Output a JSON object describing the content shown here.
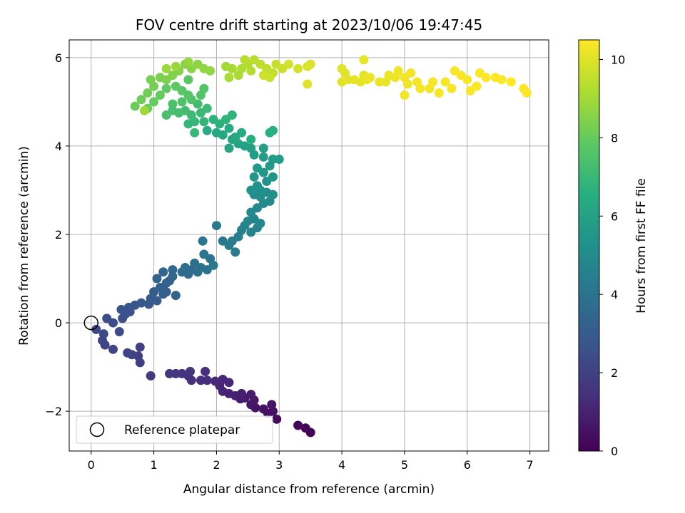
{
  "chart_data": {
    "type": "scatter",
    "title": "FOV centre drift starting at 2023/10/06 19:47:45",
    "xlabel": "Angular distance from reference (arcmin)",
    "ylabel": "Rotation from reference (arcmin)",
    "xlim": [
      -0.35,
      7.3
    ],
    "ylim": [
      -2.9,
      6.4
    ],
    "xticks": [
      0,
      1,
      2,
      3,
      4,
      5,
      6,
      7
    ],
    "yticks": [
      -2,
      0,
      2,
      4,
      6
    ],
    "grid": true,
    "legend": {
      "placement": "lower-left",
      "entries": [
        "Reference platepar"
      ]
    },
    "reference_point": {
      "x": 0,
      "y": 0,
      "label": "Reference platepar"
    },
    "colorbar": {
      "label": "Hours from first FF file",
      "range": [
        0,
        10.5
      ],
      "ticks": [
        0,
        2,
        4,
        6,
        8,
        10
      ],
      "colormap": "viridis"
    },
    "point_columns": [
      "x",
      "y",
      "hours"
    ],
    "points": [
      [
        3.5,
        -2.48,
        0.0
      ],
      [
        3.42,
        -2.38,
        0.1
      ],
      [
        3.3,
        -2.32,
        0.2
      ],
      [
        2.96,
        -2.18,
        0.3
      ],
      [
        2.82,
        -2.05,
        0.4
      ],
      [
        2.9,
        -2.0,
        0.45
      ],
      [
        2.75,
        -1.95,
        0.5
      ],
      [
        2.62,
        -1.92,
        0.55
      ],
      [
        2.88,
        -1.85,
        0.6
      ],
      [
        2.55,
        -1.85,
        0.65
      ],
      [
        2.6,
        -1.75,
        0.7
      ],
      [
        2.45,
        -1.7,
        0.75
      ],
      [
        2.38,
        -1.72,
        0.8
      ],
      [
        2.55,
        -1.62,
        0.85
      ],
      [
        2.4,
        -1.6,
        0.9
      ],
      [
        2.3,
        -1.65,
        0.95
      ],
      [
        2.2,
        -1.6,
        1.0
      ],
      [
        2.1,
        -1.55,
        1.05
      ],
      [
        2.05,
        -1.42,
        1.1
      ],
      [
        2.2,
        -1.35,
        1.15
      ],
      [
        2.1,
        -1.28,
        1.2
      ],
      [
        1.98,
        -1.32,
        1.25
      ],
      [
        1.85,
        -1.3,
        1.3
      ],
      [
        1.75,
        -1.3,
        1.35
      ],
      [
        1.82,
        -1.1,
        1.4
      ],
      [
        1.6,
        -1.3,
        1.45
      ],
      [
        1.55,
        -1.2,
        1.5
      ],
      [
        1.58,
        -1.1,
        1.55
      ],
      [
        1.45,
        -1.15,
        1.6
      ],
      [
        1.35,
        -1.15,
        1.65
      ],
      [
        1.25,
        -1.15,
        1.7
      ],
      [
        0.95,
        -1.2,
        1.8
      ],
      [
        0.78,
        -0.9,
        1.9
      ],
      [
        0.75,
        -0.75,
        1.95
      ],
      [
        0.78,
        -0.55,
        2.0
      ],
      [
        0.65,
        -0.72,
        2.05
      ],
      [
        0.58,
        -0.68,
        2.1
      ],
      [
        0.35,
        -0.6,
        2.15
      ],
      [
        0.22,
        -0.5,
        2.2
      ],
      [
        0.18,
        -0.4,
        2.25
      ],
      [
        0.2,
        -0.25,
        2.3
      ],
      [
        0.08,
        -0.15,
        2.35
      ],
      [
        0.45,
        -0.2,
        2.4
      ],
      [
        0.35,
        0.0,
        2.45
      ],
      [
        0.25,
        0.1,
        2.5
      ],
      [
        0.5,
        0.1,
        2.55
      ],
      [
        0.55,
        0.2,
        2.6
      ],
      [
        0.48,
        0.3,
        2.65
      ],
      [
        0.62,
        0.25,
        2.7
      ],
      [
        0.6,
        0.35,
        2.75
      ],
      [
        0.7,
        0.4,
        2.8
      ],
      [
        0.8,
        0.45,
        2.85
      ],
      [
        0.92,
        0.42,
        2.9
      ],
      [
        0.95,
        0.55,
        2.95
      ],
      [
        1.05,
        0.5,
        3.0
      ],
      [
        1.0,
        0.7,
        3.05
      ],
      [
        1.15,
        0.65,
        3.1
      ],
      [
        1.2,
        0.7,
        3.15
      ],
      [
        1.1,
        0.8,
        3.2
      ],
      [
        1.2,
        0.9,
        3.25
      ],
      [
        1.25,
        0.95,
        3.3
      ],
      [
        1.05,
        1.0,
        3.35
      ],
      [
        1.35,
        0.62,
        3.4
      ],
      [
        1.3,
        1.05,
        3.45
      ],
      [
        1.15,
        1.15,
        3.5
      ],
      [
        1.3,
        1.2,
        3.55
      ],
      [
        1.45,
        1.15,
        3.6
      ],
      [
        1.55,
        1.1,
        3.65
      ],
      [
        1.6,
        1.2,
        3.7
      ],
      [
        1.5,
        1.25,
        3.75
      ],
      [
        1.7,
        1.15,
        3.8
      ],
      [
        1.65,
        1.35,
        3.85
      ],
      [
        1.75,
        1.25,
        3.9
      ],
      [
        1.85,
        1.2,
        3.95
      ],
      [
        1.9,
        1.45,
        4.0
      ],
      [
        1.8,
        1.55,
        4.05
      ],
      [
        1.78,
        1.85,
        4.1
      ],
      [
        1.95,
        1.3,
        4.15
      ],
      [
        2.0,
        2.2,
        4.2
      ],
      [
        2.1,
        1.85,
        4.25
      ],
      [
        2.2,
        1.75,
        4.3
      ],
      [
        2.3,
        1.6,
        4.35
      ],
      [
        2.25,
        1.85,
        4.4
      ],
      [
        2.35,
        1.95,
        4.45
      ],
      [
        2.4,
        2.1,
        4.5
      ],
      [
        2.45,
        2.2,
        4.55
      ],
      [
        2.55,
        2.05,
        4.6
      ],
      [
        2.65,
        2.15,
        4.65
      ],
      [
        2.5,
        2.3,
        4.7
      ],
      [
        2.6,
        2.35,
        4.75
      ],
      [
        2.7,
        2.25,
        4.8
      ],
      [
        2.55,
        2.5,
        4.85
      ],
      [
        2.65,
        2.6,
        4.9
      ],
      [
        2.75,
        2.7,
        4.95
      ],
      [
        2.85,
        2.75,
        5.0
      ],
      [
        2.7,
        2.85,
        5.05
      ],
      [
        2.6,
        2.9,
        5.1
      ],
      [
        2.8,
        2.95,
        5.15
      ],
      [
        2.9,
        2.9,
        5.2
      ],
      [
        2.7,
        3.0,
        5.25
      ],
      [
        2.55,
        3.0,
        5.3
      ],
      [
        2.65,
        3.1,
        5.35
      ],
      [
        2.8,
        3.2,
        5.4
      ],
      [
        2.9,
        3.3,
        5.45
      ],
      [
        2.75,
        3.4,
        5.5
      ],
      [
        2.6,
        3.3,
        5.55
      ],
      [
        2.65,
        3.5,
        5.6
      ],
      [
        2.85,
        3.55,
        5.65
      ],
      [
        2.9,
        3.7,
        5.7
      ],
      [
        3.0,
        3.7,
        5.75
      ],
      [
        2.75,
        3.75,
        5.8
      ],
      [
        2.6,
        3.8,
        5.85
      ],
      [
        2.55,
        3.95,
        5.9
      ],
      [
        2.75,
        3.95,
        5.95
      ],
      [
        2.45,
        4.0,
        6.0
      ],
      [
        2.35,
        4.05,
        6.05
      ],
      [
        2.2,
        3.95,
        6.1
      ],
      [
        2.25,
        4.15,
        6.15
      ],
      [
        2.3,
        4.2,
        6.2
      ],
      [
        2.1,
        4.25,
        6.25
      ],
      [
        2.0,
        4.3,
        6.3
      ],
      [
        1.85,
        4.35,
        6.35
      ],
      [
        2.2,
        4.4,
        6.4
      ],
      [
        2.4,
        4.3,
        6.45
      ],
      [
        2.55,
        4.15,
        6.5
      ],
      [
        2.85,
        4.3,
        6.55
      ],
      [
        2.9,
        4.35,
        6.6
      ],
      [
        2.05,
        4.5,
        6.65
      ],
      [
        1.95,
        4.6,
        6.7
      ],
      [
        2.15,
        4.6,
        6.75
      ],
      [
        2.25,
        4.7,
        6.8
      ],
      [
        1.8,
        4.55,
        6.85
      ],
      [
        1.65,
        4.55,
        6.9
      ],
      [
        1.55,
        4.5,
        6.95
      ],
      [
        1.65,
        4.3,
        7.0
      ],
      [
        1.75,
        4.75,
        7.05
      ],
      [
        1.85,
        4.85,
        7.1
      ],
      [
        1.6,
        4.7,
        7.15
      ],
      [
        1.7,
        4.95,
        7.2
      ],
      [
        1.5,
        4.8,
        7.25
      ],
      [
        1.4,
        4.75,
        7.3
      ],
      [
        1.3,
        4.8,
        7.35
      ],
      [
        1.2,
        4.7,
        7.4
      ],
      [
        1.3,
        4.95,
        7.45
      ],
      [
        1.45,
        5.0,
        7.5
      ],
      [
        1.6,
        5.05,
        7.55
      ],
      [
        1.75,
        5.15,
        7.6
      ],
      [
        1.8,
        5.3,
        7.65
      ],
      [
        1.55,
        5.15,
        7.7
      ],
      [
        1.45,
        5.25,
        7.75
      ],
      [
        1.55,
        5.5,
        7.8
      ],
      [
        1.35,
        5.35,
        7.85
      ],
      [
        1.2,
        5.3,
        7.9
      ],
      [
        1.1,
        5.15,
        7.95
      ],
      [
        1.0,
        5.0,
        8.0
      ],
      [
        0.9,
        4.85,
        8.05
      ],
      [
        0.7,
        4.9,
        8.1
      ],
      [
        0.8,
        5.05,
        8.15
      ],
      [
        0.9,
        5.2,
        8.2
      ],
      [
        1.0,
        5.35,
        8.25
      ],
      [
        0.95,
        5.5,
        8.3
      ],
      [
        1.1,
        5.55,
        8.35
      ],
      [
        1.2,
        5.5,
        8.4
      ],
      [
        1.3,
        5.6,
        8.45
      ],
      [
        1.4,
        5.7,
        8.5
      ],
      [
        1.5,
        5.85,
        8.55
      ],
      [
        1.6,
        5.75,
        8.6
      ],
      [
        1.7,
        5.85,
        8.65
      ],
      [
        1.8,
        5.75,
        8.7
      ],
      [
        1.9,
        5.7,
        8.75
      ],
      [
        1.55,
        5.9,
        8.8
      ],
      [
        1.35,
        5.8,
        8.85
      ],
      [
        1.2,
        5.75,
        8.9
      ],
      [
        0.85,
        4.8,
        8.95
      ],
      [
        2.15,
        5.8,
        9.0
      ],
      [
        2.25,
        5.75,
        9.05
      ],
      [
        2.2,
        5.55,
        9.1
      ],
      [
        2.35,
        5.6,
        9.15
      ],
      [
        2.4,
        5.75,
        9.2
      ],
      [
        2.5,
        5.85,
        9.25
      ],
      [
        2.55,
        5.7,
        9.3
      ],
      [
        2.45,
        5.95,
        9.35
      ],
      [
        2.6,
        5.95,
        9.4
      ],
      [
        2.7,
        5.85,
        9.45
      ],
      [
        2.8,
        5.75,
        9.5
      ],
      [
        2.9,
        5.65,
        9.55
      ],
      [
        2.95,
        5.85,
        9.6
      ],
      [
        3.05,
        5.75,
        9.65
      ],
      [
        2.85,
        5.55,
        9.7
      ],
      [
        2.75,
        5.6,
        9.75
      ],
      [
        3.15,
        5.85,
        9.8
      ],
      [
        3.3,
        5.75,
        9.85
      ],
      [
        3.45,
        5.8,
        9.9
      ],
      [
        3.5,
        5.85,
        9.95
      ],
      [
        3.45,
        5.4,
        10.0
      ],
      [
        4.0,
        5.75,
        10.0
      ],
      [
        4.05,
        5.65,
        10.05
      ],
      [
        4.0,
        5.45,
        10.05
      ],
      [
        4.1,
        5.5,
        10.1
      ],
      [
        4.2,
        5.5,
        10.1
      ],
      [
        4.3,
        5.45,
        10.12
      ],
      [
        4.35,
        5.6,
        10.12
      ],
      [
        4.35,
        5.95,
        10.15
      ],
      [
        4.4,
        5.5,
        10.15
      ],
      [
        4.45,
        5.55,
        10.2
      ],
      [
        4.6,
        5.45,
        10.2
      ],
      [
        4.7,
        5.45,
        10.22
      ],
      [
        4.75,
        5.6,
        10.22
      ],
      [
        4.85,
        5.55,
        10.25
      ],
      [
        4.9,
        5.7,
        10.25
      ],
      [
        5.0,
        5.55,
        10.28
      ],
      [
        5.05,
        5.4,
        10.3
      ],
      [
        5.0,
        5.15,
        10.3
      ],
      [
        5.1,
        5.65,
        10.32
      ],
      [
        5.2,
        5.45,
        10.33
      ],
      [
        5.25,
        5.3,
        10.35
      ],
      [
        5.4,
        5.3,
        10.36
      ],
      [
        5.45,
        5.45,
        10.37
      ],
      [
        5.55,
        5.2,
        10.38
      ],
      [
        5.65,
        5.45,
        10.4
      ],
      [
        5.75,
        5.3,
        10.4
      ],
      [
        5.8,
        5.7,
        10.42
      ],
      [
        5.9,
        5.6,
        10.42
      ],
      [
        6.0,
        5.5,
        10.44
      ],
      [
        6.05,
        5.25,
        10.44
      ],
      [
        6.15,
        5.35,
        10.45
      ],
      [
        6.2,
        5.65,
        10.46
      ],
      [
        6.3,
        5.55,
        10.47
      ],
      [
        6.45,
        5.55,
        10.47
      ],
      [
        6.55,
        5.5,
        10.48
      ],
      [
        6.7,
        5.45,
        10.49
      ],
      [
        6.9,
        5.3,
        10.5
      ],
      [
        6.95,
        5.2,
        10.5
      ]
    ]
  }
}
